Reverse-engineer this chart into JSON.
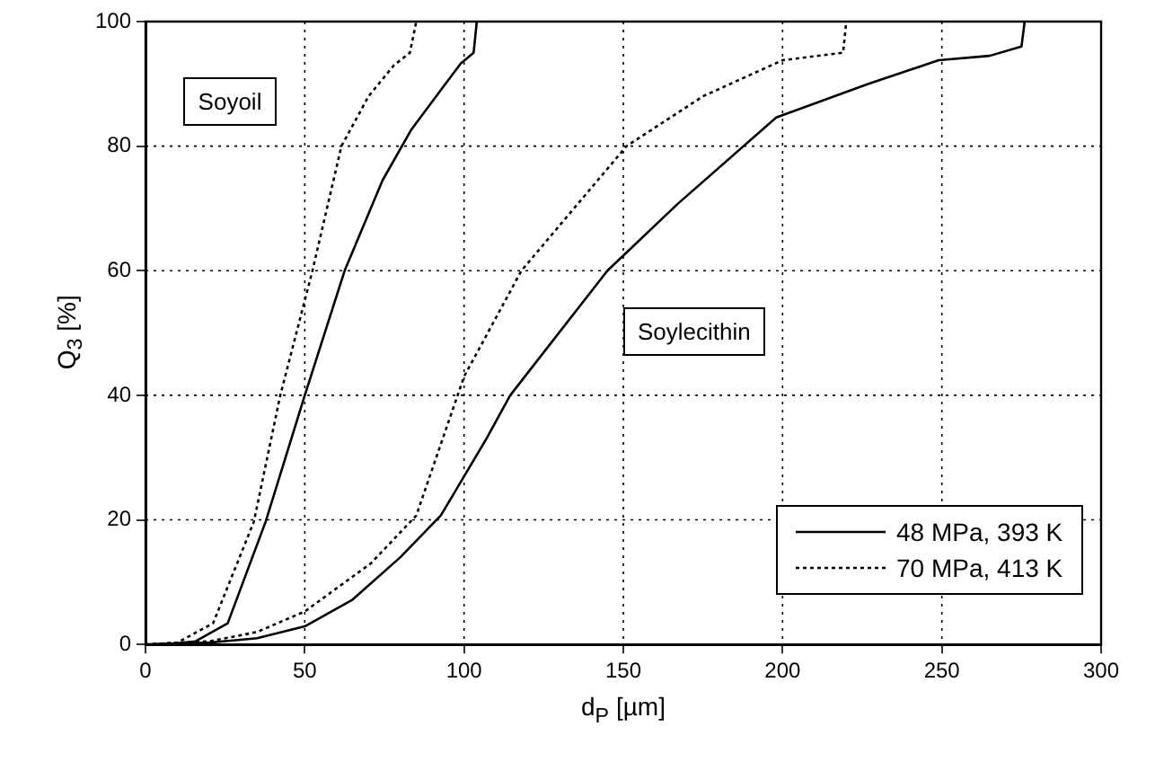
{
  "chart_data": {
    "type": "line",
    "xlabel": "d$_{P}$ [µm]",
    "ylabel": "Q$_{3}$ [%]",
    "xlim": [
      0,
      300
    ],
    "xticks": [
      0,
      50,
      100,
      150,
      200,
      250,
      300
    ],
    "ylim": [
      0,
      100
    ],
    "yticks": [
      0,
      20,
      40,
      60,
      80,
      100
    ],
    "grid": true,
    "legend": "bottom right",
    "marker": "none",
    "annotations": [
      "Soyoil",
      "Soylecithin"
    ],
    "series": [
      {
        "name": "48 MPa, 393 K",
        "color": "#000000",
        "line_style": "solid",
        "x": [
          0,
          10,
          15.7,
          25.8,
          37.7,
          50,
          62.5,
          74.4,
          83.5,
          92.7,
          99,
          103,
          104
        ],
        "values": [
          0,
          0.2,
          0.5,
          3.4,
          19.7,
          40,
          60,
          74.5,
          82.7,
          89,
          93.3,
          95,
          100
        ]
      },
      {
        "name": "70 MPa, 413 K",
        "color": "#000000",
        "line_style": "dotted",
        "x": [
          0,
          10,
          21.2,
          34,
          42.3,
          52.4,
          61.5,
          70,
          78,
          83,
          85
        ],
        "values": [
          0,
          0.3,
          3.4,
          19.7,
          40,
          60,
          80,
          88,
          93,
          95,
          100
        ]
      },
      {
        "color": "#000000",
        "line_style": "solid",
        "x": [
          0,
          20,
          35,
          50,
          65,
          80,
          92.7,
          107,
          114.5,
          145,
          167,
          198,
          227,
          249,
          265,
          275,
          276
        ],
        "values": [
          0,
          0.3,
          1,
          2.9,
          7.2,
          14,
          20.7,
          33,
          40,
          60,
          70.7,
          84.6,
          90,
          93.8,
          94.5,
          96,
          100
        ]
      },
      {
        "color": "#000000",
        "line_style": "dotted",
        "x": [
          0,
          20,
          35,
          50,
          70.7,
          85,
          100,
          118,
          151,
          175,
          200,
          219,
          220
        ],
        "values": [
          0,
          0.5,
          2,
          5.3,
          13,
          20.7,
          43,
          60,
          80,
          88,
          93.8,
          95,
          100
        ]
      }
    ]
  }
}
